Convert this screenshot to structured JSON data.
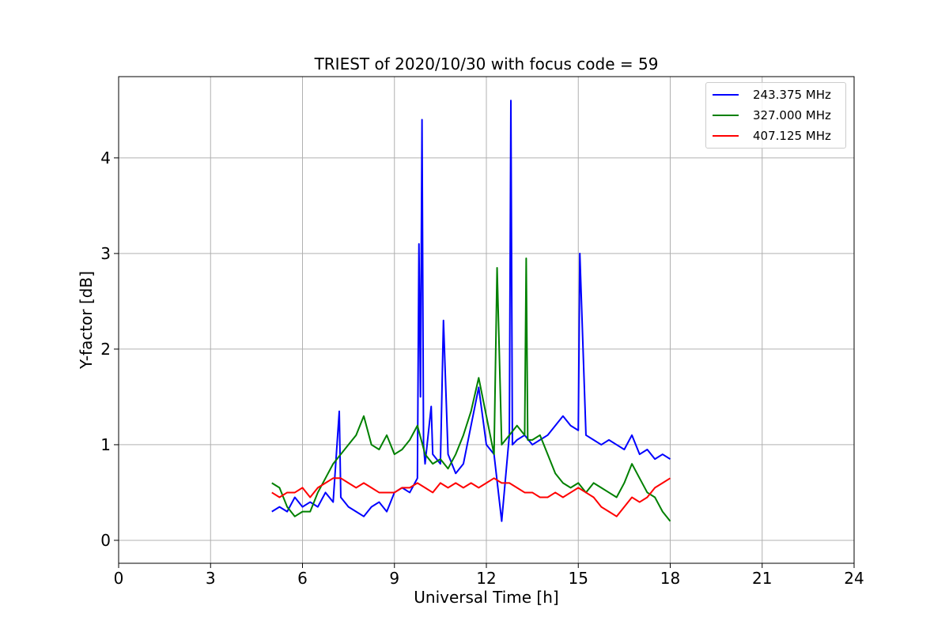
{
  "chart_data": {
    "type": "line",
    "title": "TRIEST of 2020/10/30 with focus code = 59",
    "xlabel": "Universal Time [h]",
    "ylabel": "Y-factor [dB]",
    "xlim": [
      0,
      24
    ],
    "ylim": [
      -0.24,
      4.85
    ],
    "xticks": [
      "0",
      "3",
      "6",
      "9",
      "12",
      "15",
      "18",
      "21",
      "24"
    ],
    "yticks": [
      "0",
      "1",
      "2",
      "3",
      "4"
    ],
    "grid": true,
    "legend_position": "top-right",
    "series": [
      {
        "name": "243.375 MHz",
        "color": "#0000ff",
        "x": [
          5.0,
          5.25,
          5.5,
          5.75,
          6.0,
          6.25,
          6.5,
          6.75,
          7.0,
          7.2,
          7.25,
          7.5,
          7.75,
          8.0,
          8.25,
          8.5,
          8.75,
          9.0,
          9.25,
          9.5,
          9.75,
          9.8,
          9.85,
          9.9,
          9.95,
          10.0,
          10.2,
          10.25,
          10.5,
          10.6,
          10.75,
          11.0,
          11.25,
          11.5,
          11.75,
          12.0,
          12.25,
          12.5,
          12.75,
          12.8,
          12.85,
          13.0,
          13.25,
          13.5,
          13.75,
          14.0,
          14.25,
          14.5,
          14.75,
          15.0,
          15.05,
          15.25,
          15.5,
          15.75,
          16.0,
          16.25,
          16.5,
          16.75,
          17.0,
          17.25,
          17.5,
          17.75,
          18.0
        ],
        "y": [
          0.3,
          0.35,
          0.3,
          0.45,
          0.35,
          0.4,
          0.35,
          0.5,
          0.4,
          1.35,
          0.45,
          0.35,
          0.3,
          0.25,
          0.35,
          0.4,
          0.3,
          0.5,
          0.55,
          0.5,
          0.65,
          3.1,
          1.5,
          4.4,
          1.0,
          0.8,
          1.4,
          0.9,
          0.8,
          2.3,
          0.9,
          0.7,
          0.8,
          1.2,
          1.6,
          1.0,
          0.9,
          0.2,
          1.1,
          4.6,
          1.0,
          1.05,
          1.1,
          1.0,
          1.05,
          1.1,
          1.2,
          1.3,
          1.2,
          1.15,
          3.0,
          1.1,
          1.05,
          1.0,
          1.05,
          1.0,
          0.95,
          1.1,
          0.9,
          0.95,
          0.85,
          0.9,
          0.85
        ]
      },
      {
        "name": "327.000 MHz",
        "color": "#008000",
        "x": [
          5.0,
          5.25,
          5.5,
          5.75,
          6.0,
          6.25,
          6.5,
          6.75,
          7.0,
          7.25,
          7.5,
          7.75,
          8.0,
          8.25,
          8.5,
          8.75,
          9.0,
          9.25,
          9.5,
          9.75,
          10.0,
          10.25,
          10.5,
          10.75,
          11.0,
          11.25,
          11.5,
          11.75,
          12.0,
          12.25,
          12.35,
          12.5,
          12.75,
          13.0,
          13.25,
          13.3,
          13.35,
          13.5,
          13.75,
          14.0,
          14.25,
          14.5,
          14.75,
          15.0,
          15.25,
          15.5,
          15.75,
          16.0,
          16.25,
          16.5,
          16.75,
          17.0,
          17.25,
          17.5,
          17.75,
          18.0
        ],
        "y": [
          0.6,
          0.55,
          0.35,
          0.25,
          0.3,
          0.3,
          0.5,
          0.65,
          0.8,
          0.9,
          1.0,
          1.1,
          1.3,
          1.0,
          0.95,
          1.1,
          0.9,
          0.95,
          1.05,
          1.2,
          0.9,
          0.8,
          0.85,
          0.75,
          0.9,
          1.1,
          1.35,
          1.7,
          1.3,
          0.9,
          2.85,
          1.0,
          1.1,
          1.2,
          1.1,
          2.95,
          1.05,
          1.05,
          1.1,
          0.9,
          0.7,
          0.6,
          0.55,
          0.6,
          0.5,
          0.6,
          0.55,
          0.5,
          0.45,
          0.6,
          0.8,
          0.65,
          0.5,
          0.45,
          0.3,
          0.2
        ]
      },
      {
        "name": "407.125 MHz",
        "color": "#ff0000",
        "x": [
          5.0,
          5.25,
          5.5,
          5.75,
          6.0,
          6.25,
          6.5,
          6.75,
          7.0,
          7.25,
          7.5,
          7.75,
          8.0,
          8.25,
          8.5,
          8.75,
          9.0,
          9.25,
          9.5,
          9.75,
          10.0,
          10.25,
          10.5,
          10.75,
          11.0,
          11.25,
          11.5,
          11.75,
          12.0,
          12.25,
          12.5,
          12.75,
          13.0,
          13.25,
          13.5,
          13.75,
          14.0,
          14.25,
          14.5,
          14.75,
          15.0,
          15.25,
          15.5,
          15.75,
          16.0,
          16.25,
          16.5,
          16.75,
          17.0,
          17.25,
          17.5,
          17.75,
          18.0
        ],
        "y": [
          0.5,
          0.45,
          0.5,
          0.5,
          0.55,
          0.45,
          0.55,
          0.6,
          0.65,
          0.65,
          0.6,
          0.55,
          0.6,
          0.55,
          0.5,
          0.5,
          0.5,
          0.55,
          0.55,
          0.6,
          0.55,
          0.5,
          0.6,
          0.55,
          0.6,
          0.55,
          0.6,
          0.55,
          0.6,
          0.65,
          0.6,
          0.6,
          0.55,
          0.5,
          0.5,
          0.45,
          0.45,
          0.5,
          0.45,
          0.5,
          0.55,
          0.5,
          0.45,
          0.35,
          0.3,
          0.25,
          0.35,
          0.45,
          0.4,
          0.45,
          0.55,
          0.6,
          0.65
        ]
      }
    ]
  }
}
